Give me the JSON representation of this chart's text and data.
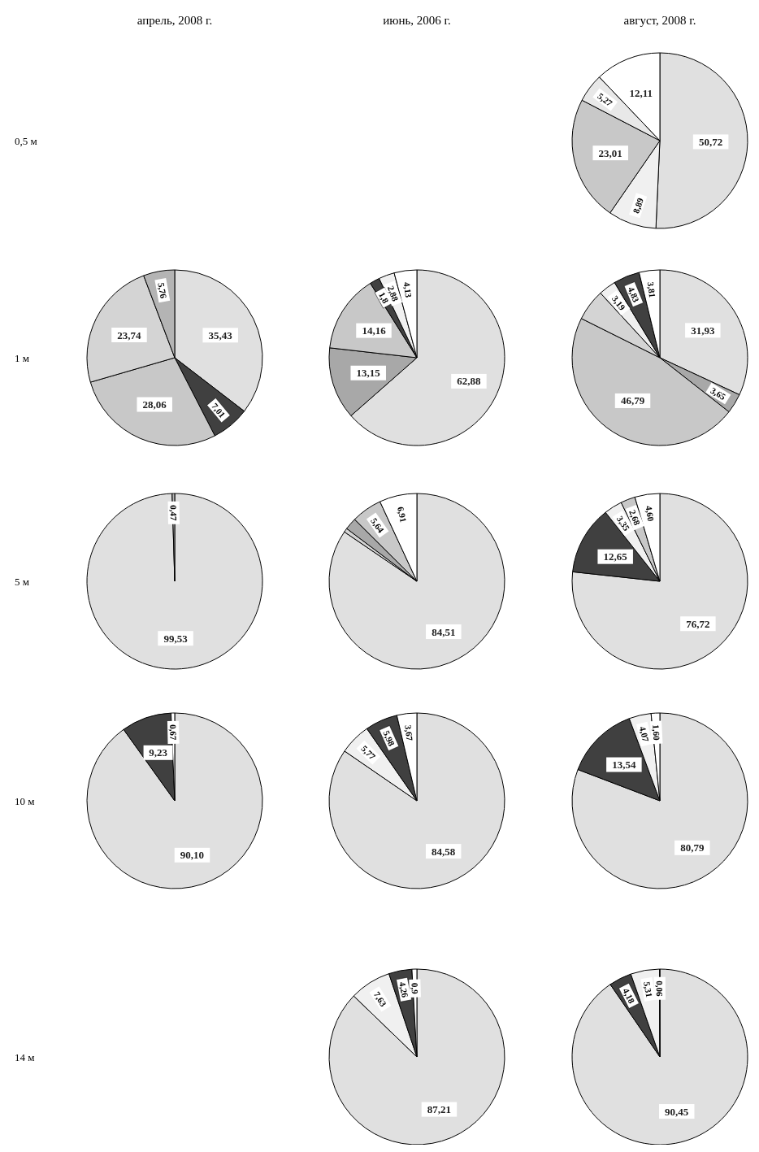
{
  "chart_data": [
    {
      "type": "other",
      "annotations": [
        "апрель, 2008 г.",
        "июнь, 2006 г.",
        "август, 2008 г.",
        "0,5 м",
        "1 м",
        "5 м",
        "10 м",
        "14 м"
      ]
    },
    {
      "type": "pie",
      "categories": [
        null,
        null,
        null,
        null,
        null
      ],
      "values": [
        50.72,
        8.89,
        23.01,
        5.27,
        12.11
      ],
      "colors": [
        "#e0e0e0",
        "#f0f0f0",
        "#c8c8c8",
        "#e8e8e8",
        "#ffffff"
      ],
      "value_labels": [
        "50,72",
        "8,89",
        "23,01",
        "5,27",
        "12,11"
      ]
    },
    {
      "type": "pie",
      "categories": [
        null,
        null,
        null,
        null,
        null
      ],
      "values": [
        35.43,
        7.01,
        28.06,
        23.74,
        5.76
      ],
      "colors": [
        "#e0e0e0",
        "#404040",
        "#c8c8c8",
        "#d4d4d4",
        "#b4b4b4"
      ],
      "value_labels": [
        "35,43",
        "7,01",
        "28,06",
        "23,74",
        "5,76"
      ]
    },
    {
      "type": "pie",
      "categories": [
        null,
        null,
        null,
        null,
        null,
        null
      ],
      "values": [
        62.88,
        13.15,
        14.16,
        1.8,
        2.88,
        4.13
      ],
      "colors": [
        "#e0e0e0",
        "#a8a8a8",
        "#c8c8c8",
        "#404040",
        "#f0f0f0",
        "#ffffff"
      ],
      "value_labels": [
        "62,88",
        "13,15",
        "14,16",
        "1,8",
        "2,88",
        "4,13"
      ]
    },
    {
      "type": "pie",
      "categories": [
        null,
        null,
        null,
        null,
        null,
        null,
        null
      ],
      "values": [
        31.93,
        3.65,
        46.79,
        5.8,
        3.19,
        4.83,
        3.81
      ],
      "colors": [
        "#e0e0e0",
        "#a8a8a8",
        "#c8c8c8",
        "#d4d4d4",
        "#f0f0f0",
        "#404040",
        "#ffffff"
      ],
      "value_labels": [
        "31,93",
        "3,65",
        "46,79",
        null,
        "3,19",
        "4,83",
        "3,81"
      ]
    },
    {
      "type": "pie",
      "categories": [
        null,
        null
      ],
      "values": [
        99.53,
        0.47
      ],
      "colors": [
        "#e0e0e0",
        "#b4b4b4"
      ],
      "value_labels": [
        "99,53",
        "0,47"
      ]
    },
    {
      "type": "pie",
      "categories": [
        null,
        null,
        null,
        null,
        null
      ],
      "values": [
        84.51,
        0.74,
        2.2,
        5.64,
        6.91
      ],
      "colors": [
        "#e0e0e0",
        "#d4d4d4",
        "#a8a8a8",
        "#c8c8c8",
        "#ffffff"
      ],
      "value_labels": [
        "84,51",
        null,
        null,
        "5,64",
        "6,91"
      ]
    },
    {
      "type": "pie",
      "categories": [
        null,
        null,
        null,
        null,
        null
      ],
      "values": [
        76.72,
        12.65,
        3.35,
        2.68,
        4.6
      ],
      "colors": [
        "#e0e0e0",
        "#404040",
        "#f0f0f0",
        "#c8c8c8",
        "#ffffff"
      ],
      "value_labels": [
        "76,72",
        "12,65",
        "3,35",
        "2,68",
        "4,60"
      ]
    },
    {
      "type": "pie",
      "categories": [
        null,
        null,
        null
      ],
      "values": [
        90.1,
        9.23,
        0.67
      ],
      "colors": [
        "#e0e0e0",
        "#404040",
        "#ffffff"
      ],
      "value_labels": [
        "90,10",
        "9,23",
        "0,67"
      ]
    },
    {
      "type": "pie",
      "categories": [
        null,
        null,
        null,
        null
      ],
      "values": [
        84.58,
        5.77,
        5.98,
        3.67
      ],
      "colors": [
        "#e0e0e0",
        "#f0f0f0",
        "#404040",
        "#ffffff"
      ],
      "value_labels": [
        "84,58",
        "5,77",
        "5,98",
        "3,67"
      ]
    },
    {
      "type": "pie",
      "categories": [
        null,
        null,
        null,
        null
      ],
      "values": [
        80.79,
        13.54,
        4.07,
        1.6
      ],
      "colors": [
        "#e0e0e0",
        "#404040",
        "#f0f0f0",
        "#ffffff"
      ],
      "value_labels": [
        "80,79",
        "13,54",
        "4,07",
        "1,60"
      ]
    },
    {
      "type": "pie",
      "categories": [
        null,
        null,
        null,
        null
      ],
      "values": [
        87.21,
        7.63,
        4.26,
        0.9
      ],
      "colors": [
        "#e0e0e0",
        "#f0f0f0",
        "#404040",
        "#ffffff"
      ],
      "value_labels": [
        "87,21",
        "7,63",
        "4,26",
        "0,9"
      ]
    },
    {
      "type": "pie",
      "categories": [
        null,
        null,
        null,
        null
      ],
      "values": [
        90.45,
        4.18,
        5.31,
        0.06
      ],
      "colors": [
        "#e0e0e0",
        "#404040",
        "#f0f0f0",
        "#b4b4b4"
      ],
      "value_labels": [
        "90,45",
        "4,18",
        "5,31",
        "0,06"
      ]
    }
  ]
}
